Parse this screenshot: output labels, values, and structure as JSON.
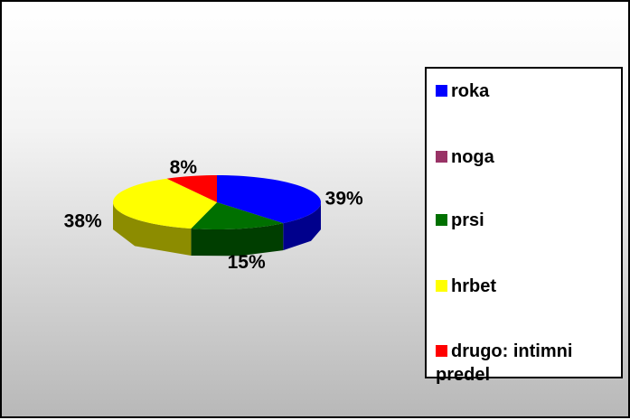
{
  "chart_data": {
    "type": "pie",
    "categories": [
      "roka",
      "noga",
      "prsi",
      "hrbet",
      "drugo: intimni predel"
    ],
    "values": [
      39,
      0,
      15,
      38,
      8
    ],
    "value_labels": [
      "39%",
      null,
      "15%",
      "38%",
      "8%"
    ],
    "colors": [
      "#0000ff",
      "#993366",
      "#007000",
      "#ffff00",
      "#ff0000"
    ],
    "legend": "right"
  }
}
